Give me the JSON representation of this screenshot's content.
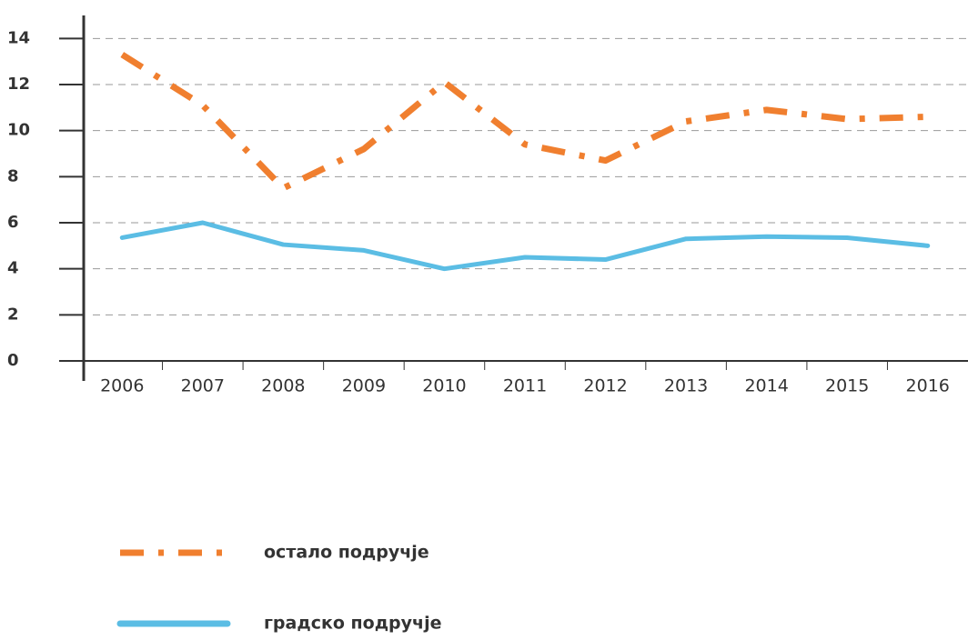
{
  "chart_data": {
    "type": "line",
    "categories": [
      "2006",
      "2007",
      "2008",
      "2009",
      "2010",
      "2011",
      "2012",
      "2013",
      "2014",
      "2015",
      "2016"
    ],
    "series": [
      {
        "name": "остало подручје",
        "color": "#f07f2f",
        "dash": "dash-dot",
        "values": [
          13.3,
          11.1,
          7.5,
          9.2,
          12.1,
          9.4,
          8.7,
          10.4,
          10.9,
          10.5,
          10.6
        ]
      },
      {
        "name": "градско подручје",
        "color": "#5bbde4",
        "dash": "solid",
        "values": [
          5.35,
          6.0,
          5.05,
          4.8,
          4.0,
          4.5,
          4.4,
          5.3,
          5.4,
          5.35,
          5.0
        ]
      }
    ],
    "ylim": [
      0,
      15
    ],
    "yticks": [
      0,
      2,
      4,
      6,
      8,
      10,
      12,
      14
    ],
    "grid": true
  }
}
